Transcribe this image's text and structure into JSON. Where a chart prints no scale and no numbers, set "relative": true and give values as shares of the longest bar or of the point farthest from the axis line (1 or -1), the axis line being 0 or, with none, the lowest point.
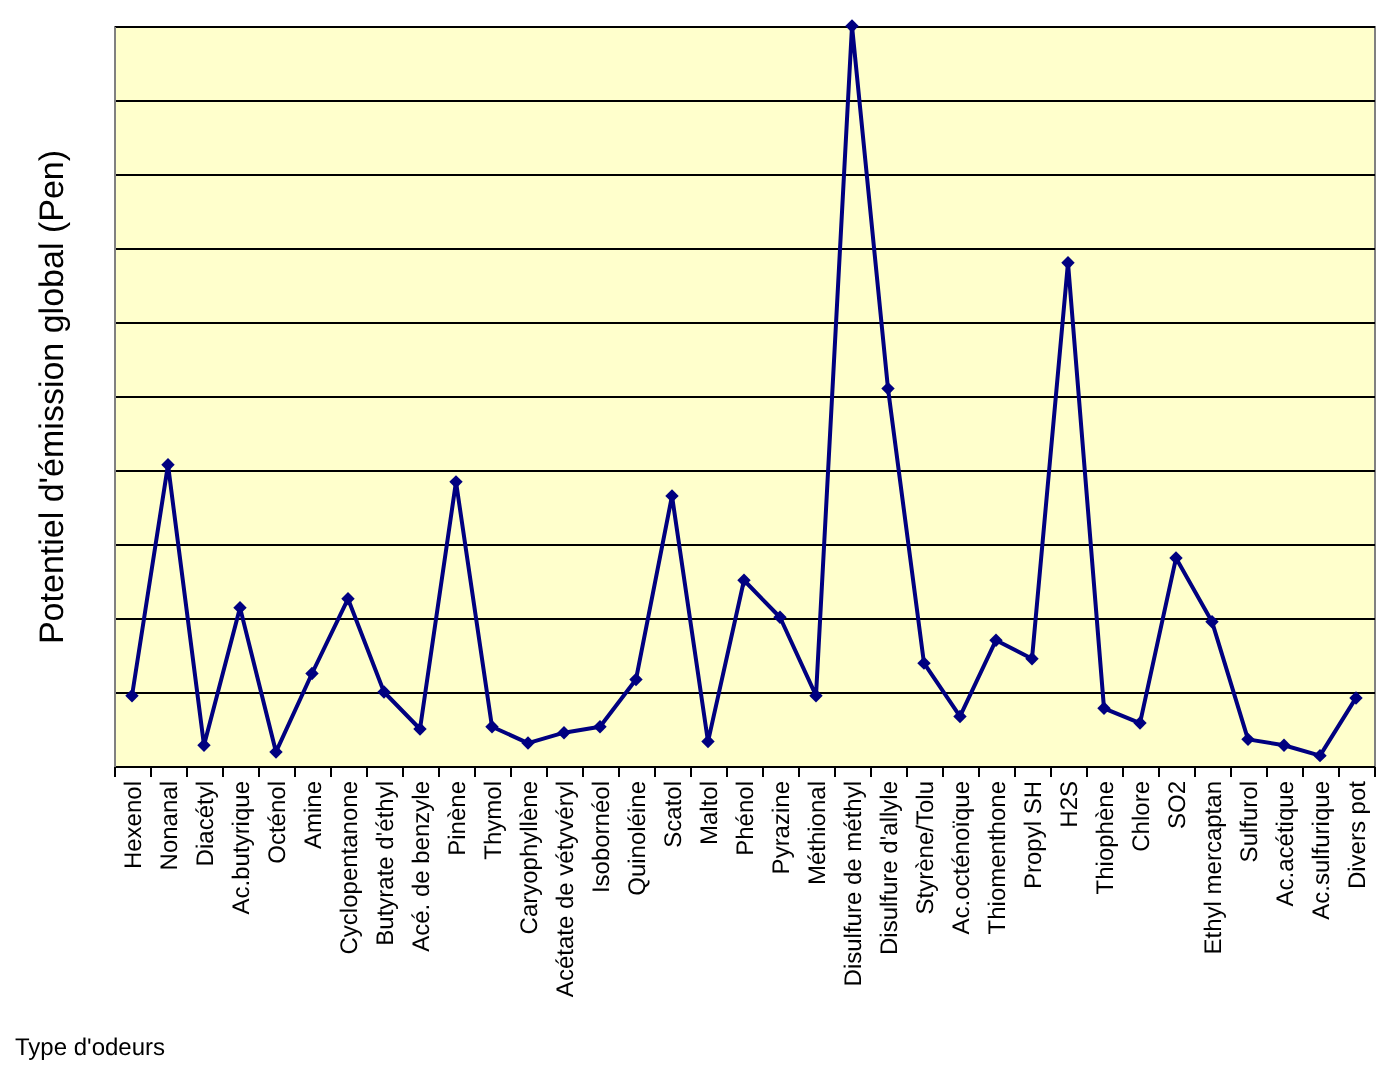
{
  "chart_data": {
    "type": "line",
    "xlabel": "Type d'odeurs",
    "ylabel": "Potentiel d'émission global (Pen)",
    "relative": true,
    "grid": "y",
    "marker": "diamond",
    "line_style": "solid",
    "categories": [
      "Hexenol",
      "Nonanal",
      "Diacétyl",
      "Ac.butyrique",
      "Octénol",
      "Amine",
      "Cyclopentanone",
      "Butyrate d'éthyl",
      "Acé. de benzyle",
      "Pinène",
      "Thymol",
      "Caryophyllène",
      "Acétate de vétyvéryl",
      "Isobornéol",
      "Quinoléine",
      "Scatol",
      "Maltol",
      "Phénol",
      "Pyrazine",
      "Méthional",
      "Disulfure de méthyl",
      "Disulfure d'allyle",
      "Styrène/Tolu",
      "Ac.octénoïque",
      "Thiomenthone",
      "Propyl SH",
      "H2S",
      "Thiophène",
      "Chlore",
      "SO2",
      "Ethyl mercaptan",
      "Sulfurol",
      "Ac.acétique",
      "Ac.sulfurique",
      "Divers pot"
    ],
    "series": [
      {
        "color": "#000080",
        "values": [
          0.095,
          0.407,
          0.028,
          0.214,
          0.019,
          0.125,
          0.226,
          0.1,
          0.05,
          0.384,
          0.053,
          0.031,
          0.045,
          0.053,
          0.117,
          0.365,
          0.033,
          0.251,
          0.201,
          0.095,
          1,
          0.51,
          0.139,
          0.067,
          0.17,
          0.145,
          0.68,
          0.078,
          0.058,
          0.281,
          0.195,
          0.036,
          0.028,
          0.014,
          0.092
        ]
      }
    ]
  }
}
